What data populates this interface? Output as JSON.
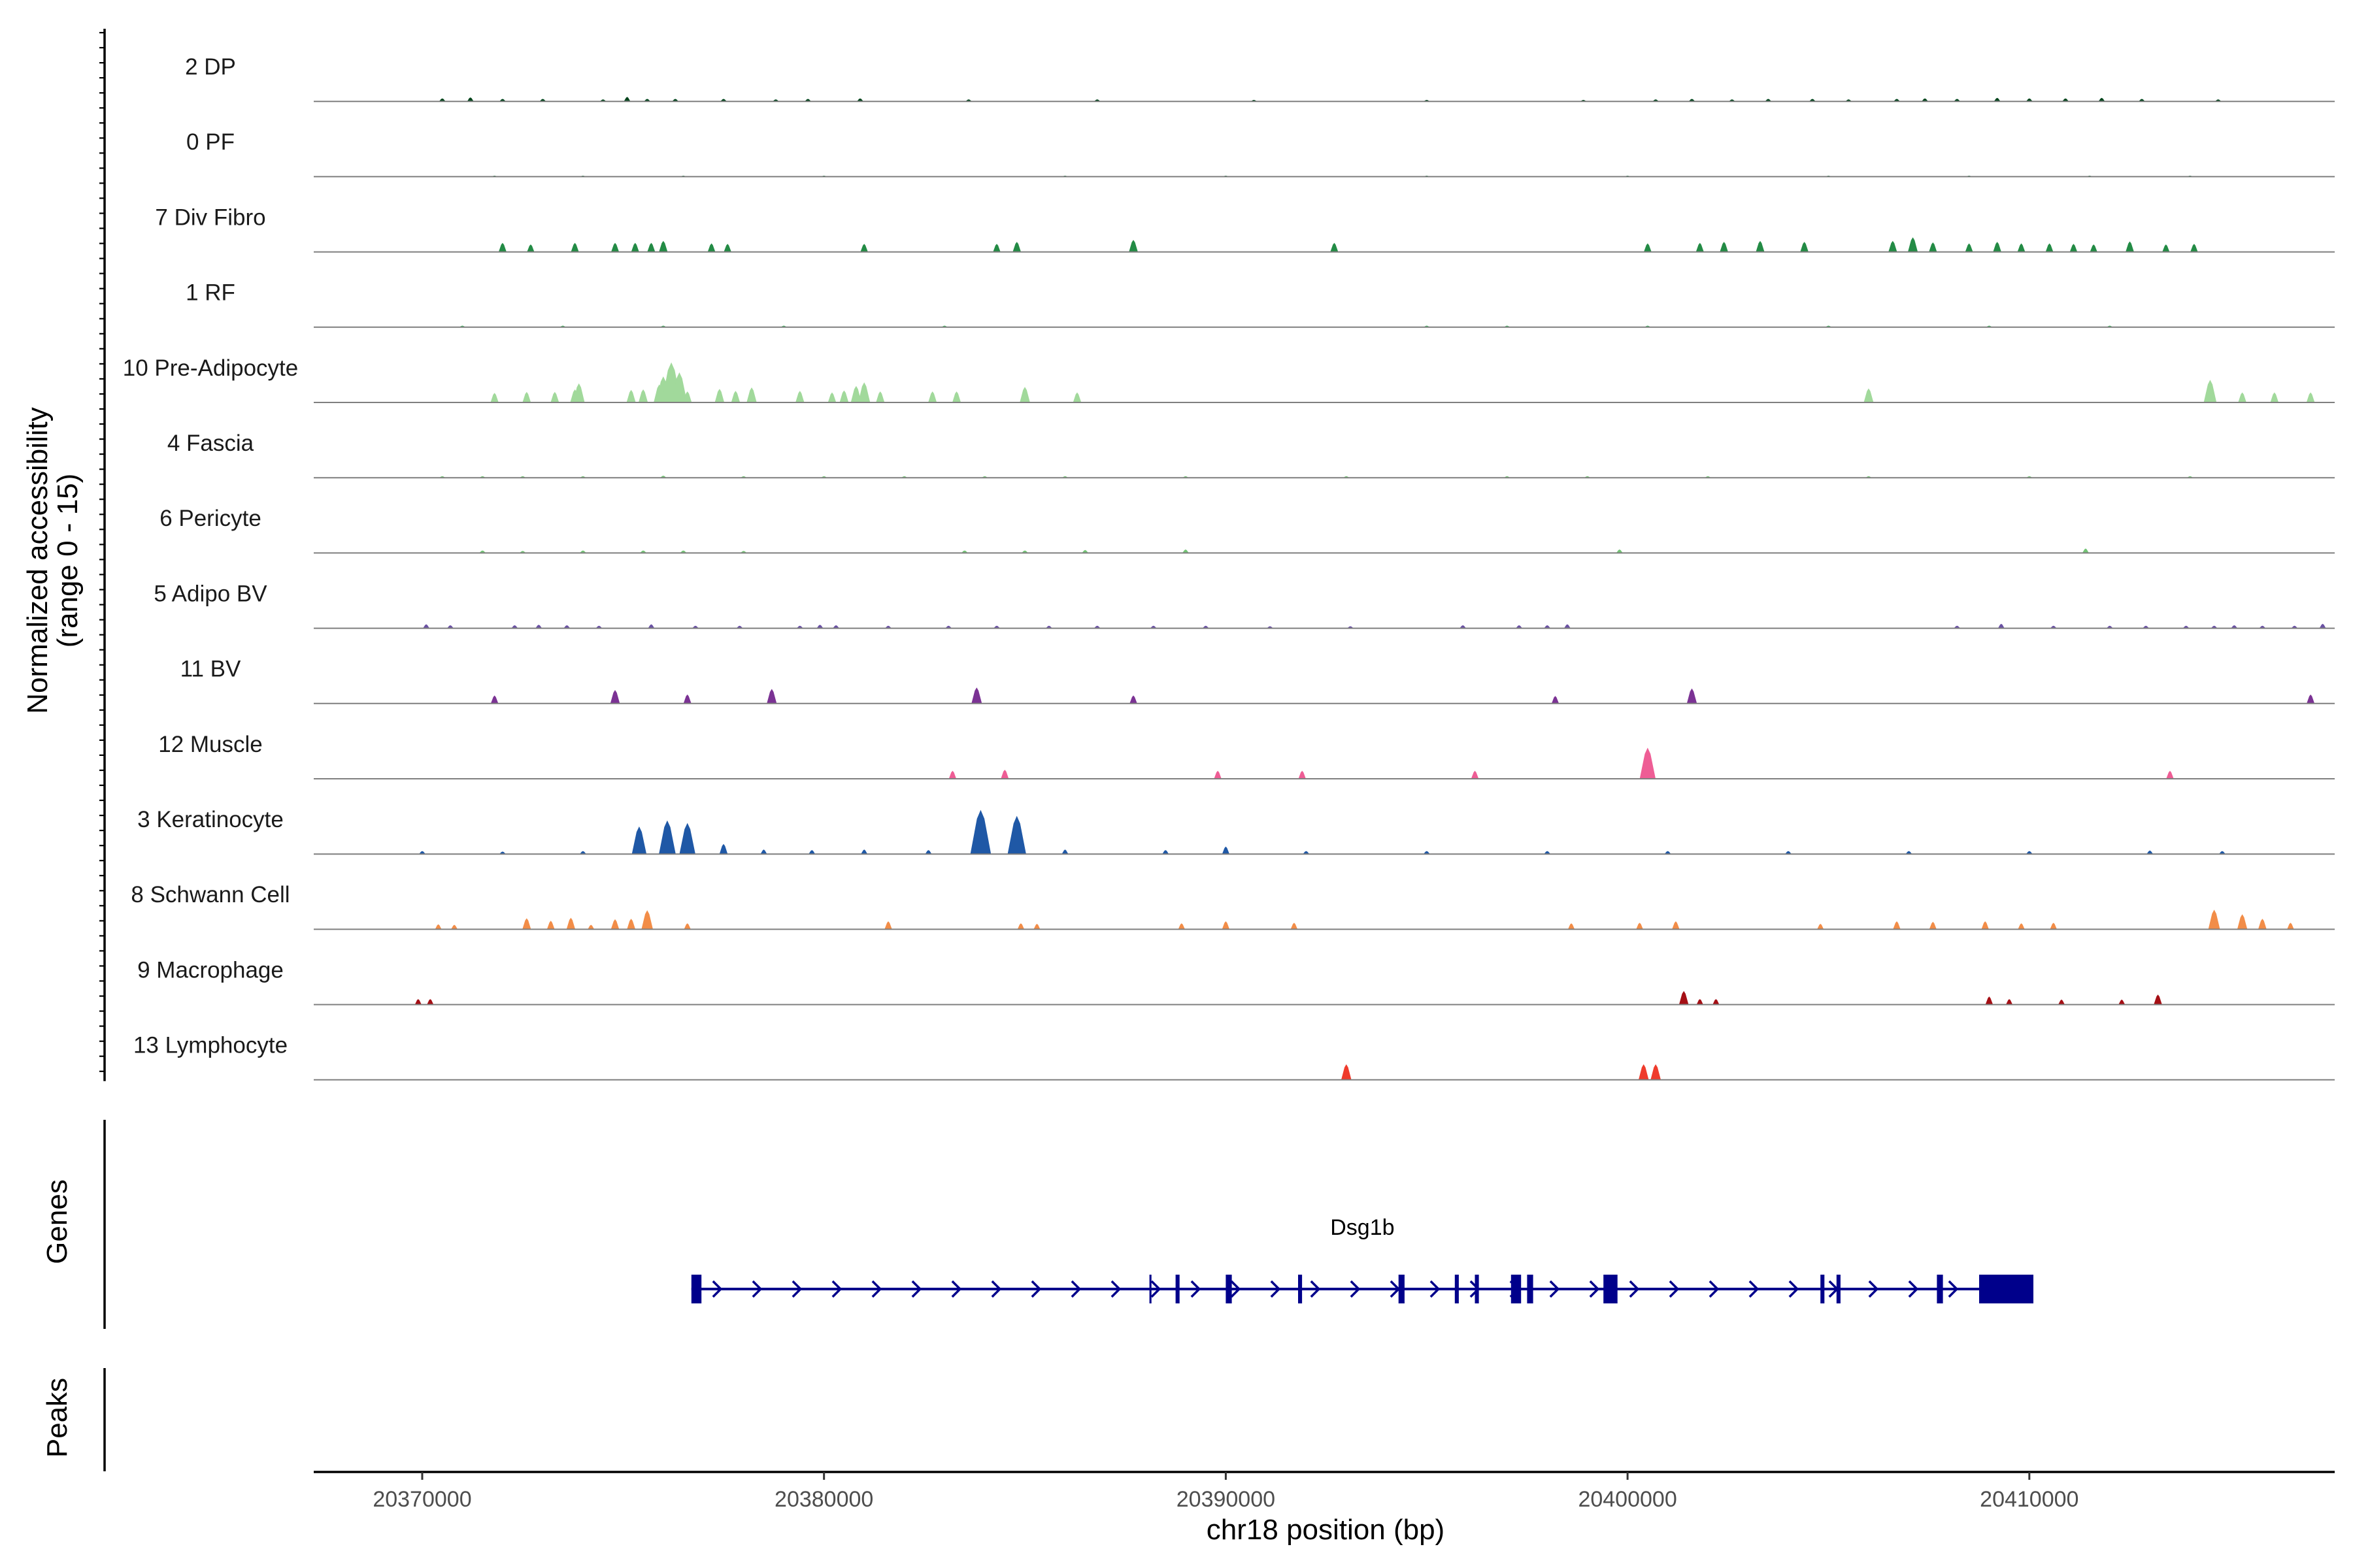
{
  "chart_data": {
    "type": "area",
    "title": "",
    "ylabel": "Normalized accessibility\n(range 0 - 15)",
    "ylabel_lines": [
      "Normalized accessibility",
      "(range 0 - 15)"
    ],
    "xlabel": "chr18 position (bp)",
    "xlim": [
      20367300,
      20417600
    ],
    "ylim": [
      0,
      15
    ],
    "x_ticks": [
      20370000,
      20380000,
      20390000,
      20400000,
      20410000
    ],
    "x_tick_labels": [
      "20370000",
      "20380000",
      "20390000",
      "20400000",
      "20410000"
    ],
    "series": [
      {
        "name": "2 DP",
        "color": "#00441b",
        "peaks": [
          [
            20370500,
            0.6
          ],
          [
            20371200,
            0.8
          ],
          [
            20372000,
            0.5
          ],
          [
            20373000,
            0.5
          ],
          [
            20374500,
            0.4
          ],
          [
            20375100,
            0.9
          ],
          [
            20375600,
            0.5
          ],
          [
            20376300,
            0.5
          ],
          [
            20377500,
            0.5
          ],
          [
            20378800,
            0.4
          ],
          [
            20379600,
            0.5
          ],
          [
            20380900,
            0.6
          ],
          [
            20383600,
            0.4
          ],
          [
            20386800,
            0.4
          ],
          [
            20390700,
            0.3
          ],
          [
            20395000,
            0.3
          ],
          [
            20398900,
            0.3
          ],
          [
            20400700,
            0.4
          ],
          [
            20401600,
            0.5
          ],
          [
            20402600,
            0.4
          ],
          [
            20403500,
            0.5
          ],
          [
            20404600,
            0.5
          ],
          [
            20405500,
            0.4
          ],
          [
            20406700,
            0.5
          ],
          [
            20407400,
            0.6
          ],
          [
            20408200,
            0.5
          ],
          [
            20409200,
            0.7
          ],
          [
            20410000,
            0.6
          ],
          [
            20410900,
            0.6
          ],
          [
            20411800,
            0.7
          ],
          [
            20412800,
            0.5
          ],
          [
            20414700,
            0.4
          ]
        ]
      },
      {
        "name": "0 PF",
        "color": "#006d2c",
        "peaks": [
          [
            20371800,
            0.2
          ],
          [
            20374000,
            0.2
          ],
          [
            20376500,
            0.2
          ],
          [
            20380000,
            0.2
          ],
          [
            20386000,
            0.2
          ],
          [
            20390000,
            0.2
          ],
          [
            20395000,
            0.2
          ],
          [
            20400000,
            0.2
          ],
          [
            20405000,
            0.2
          ],
          [
            20408500,
            0.2
          ],
          [
            20411500,
            0.2
          ],
          [
            20414000,
            0.2
          ]
        ]
      },
      {
        "name": "7 Div Fibro",
        "color": "#238b45",
        "peaks": [
          [
            20372000,
            1.8
          ],
          [
            20372700,
            1.5
          ],
          [
            20373800,
            1.8
          ],
          [
            20374800,
            1.8
          ],
          [
            20375300,
            1.8
          ],
          [
            20375700,
            1.8
          ],
          [
            20376000,
            2.2
          ],
          [
            20377200,
            1.7
          ],
          [
            20377600,
            1.6
          ],
          [
            20381000,
            1.6
          ],
          [
            20384300,
            1.6
          ],
          [
            20384800,
            2.0
          ],
          [
            20387700,
            2.4
          ],
          [
            20392700,
            1.8
          ],
          [
            20400500,
            1.7
          ],
          [
            20401800,
            1.8
          ],
          [
            20402400,
            2.0
          ],
          [
            20403300,
            2.2
          ],
          [
            20404400,
            2.0
          ],
          [
            20406600,
            2.2
          ],
          [
            20407100,
            2.9
          ],
          [
            20407600,
            1.9
          ],
          [
            20408500,
            1.7
          ],
          [
            20409200,
            2.0
          ],
          [
            20409800,
            1.7
          ],
          [
            20410500,
            1.7
          ],
          [
            20411100,
            1.6
          ],
          [
            20411600,
            1.5
          ],
          [
            20412500,
            2.1
          ],
          [
            20413400,
            1.5
          ],
          [
            20414100,
            1.6
          ]
        ]
      },
      {
        "name": "1 RF",
        "color": "#41ab5d",
        "peaks": [
          [
            20371000,
            0.3
          ],
          [
            20373500,
            0.3
          ],
          [
            20376000,
            0.3
          ],
          [
            20379000,
            0.3
          ],
          [
            20383000,
            0.3
          ],
          [
            20395000,
            0.3
          ],
          [
            20397000,
            0.3
          ],
          [
            20400500,
            0.3
          ],
          [
            20405000,
            0.3
          ],
          [
            20409000,
            0.3
          ],
          [
            20412000,
            0.3
          ]
        ]
      },
      {
        "name": "10 Pre-Adipocyte",
        "color": "#a1d99b",
        "peaks": [
          [
            20371800,
            1.9
          ],
          [
            20372600,
            2.1
          ],
          [
            20373300,
            2.1
          ],
          [
            20373800,
            2.6
          ],
          [
            20373900,
            3.8
          ],
          [
            20375200,
            2.5
          ],
          [
            20375500,
            2.6
          ],
          [
            20375900,
            3.6
          ],
          [
            20376000,
            5.2
          ],
          [
            20376200,
            8.0
          ],
          [
            20376400,
            6.0
          ],
          [
            20376600,
            2.2
          ],
          [
            20377400,
            2.7
          ],
          [
            20377800,
            2.3
          ],
          [
            20378200,
            3.0
          ],
          [
            20379400,
            2.3
          ],
          [
            20380200,
            2.0
          ],
          [
            20380500,
            2.4
          ],
          [
            20380800,
            3.3
          ],
          [
            20381000,
            4.0
          ],
          [
            20381400,
            2.2
          ],
          [
            20382700,
            2.2
          ],
          [
            20383300,
            2.2
          ],
          [
            20385000,
            3.1
          ],
          [
            20386300,
            2.0
          ],
          [
            20406000,
            2.8
          ],
          [
            20414500,
            4.5
          ],
          [
            20415300,
            2.0
          ],
          [
            20416100,
            2.0
          ],
          [
            20417000,
            2.0
          ]
        ]
      },
      {
        "name": "4 Fascia",
        "color": "#74c476",
        "peaks": [
          [
            20370500,
            0.3
          ],
          [
            20371500,
            0.3
          ],
          [
            20372500,
            0.3
          ],
          [
            20374000,
            0.3
          ],
          [
            20376000,
            0.4
          ],
          [
            20378000,
            0.3
          ],
          [
            20380000,
            0.3
          ],
          [
            20382000,
            0.3
          ],
          [
            20384000,
            0.3
          ],
          [
            20386000,
            0.3
          ],
          [
            20389000,
            0.3
          ],
          [
            20393000,
            0.3
          ],
          [
            20397000,
            0.3
          ],
          [
            20399000,
            0.3
          ],
          [
            20402000,
            0.3
          ],
          [
            20406000,
            0.3
          ],
          [
            20410000,
            0.3
          ],
          [
            20414000,
            0.3
          ]
        ]
      },
      {
        "name": "6 Pericyte",
        "color": "#74c476",
        "peaks": [
          [
            20371500,
            0.5
          ],
          [
            20372500,
            0.4
          ],
          [
            20374000,
            0.5
          ],
          [
            20375500,
            0.5
          ],
          [
            20376500,
            0.5
          ],
          [
            20378000,
            0.4
          ],
          [
            20383500,
            0.5
          ],
          [
            20385000,
            0.5
          ],
          [
            20386500,
            0.6
          ],
          [
            20389000,
            0.7
          ],
          [
            20399800,
            0.7
          ],
          [
            20411400,
            0.9
          ]
        ]
      },
      {
        "name": "5 Adipo BV",
        "color": "#6a51a3",
        "peaks": [
          [
            20370100,
            0.8
          ],
          [
            20370700,
            0.6
          ],
          [
            20372300,
            0.6
          ],
          [
            20372900,
            0.7
          ],
          [
            20373600,
            0.6
          ],
          [
            20374400,
            0.5
          ],
          [
            20375700,
            0.8
          ],
          [
            20376800,
            0.5
          ],
          [
            20377900,
            0.5
          ],
          [
            20379400,
            0.5
          ],
          [
            20379900,
            0.7
          ],
          [
            20380300,
            0.6
          ],
          [
            20381600,
            0.5
          ],
          [
            20383100,
            0.5
          ],
          [
            20384300,
            0.5
          ],
          [
            20385600,
            0.5
          ],
          [
            20386800,
            0.5
          ],
          [
            20388200,
            0.5
          ],
          [
            20389500,
            0.5
          ],
          [
            20391100,
            0.4
          ],
          [
            20393100,
            0.4
          ],
          [
            20395900,
            0.6
          ],
          [
            20397300,
            0.6
          ],
          [
            20398000,
            0.6
          ],
          [
            20398500,
            0.8
          ],
          [
            20408200,
            0.5
          ],
          [
            20409300,
            0.9
          ],
          [
            20410600,
            0.5
          ],
          [
            20412000,
            0.5
          ],
          [
            20412900,
            0.5
          ],
          [
            20413900,
            0.5
          ],
          [
            20414600,
            0.5
          ],
          [
            20415100,
            0.6
          ],
          [
            20415800,
            0.5
          ],
          [
            20416600,
            0.5
          ],
          [
            20417300,
            0.9
          ]
        ]
      },
      {
        "name": "11 BV",
        "color": "#7b3294",
        "peaks": [
          [
            20371800,
            1.6
          ],
          [
            20374800,
            2.7
          ],
          [
            20376600,
            1.8
          ],
          [
            20378700,
            2.9
          ],
          [
            20383800,
            3.2
          ],
          [
            20387700,
            1.6
          ],
          [
            20398200,
            1.5
          ],
          [
            20401600,
            3.0
          ],
          [
            20417000,
            1.8
          ]
        ]
      },
      {
        "name": "12 Muscle",
        "color": "#ee5d95",
        "peaks": [
          [
            20383200,
            1.6
          ],
          [
            20384500,
            1.8
          ],
          [
            20389800,
            1.6
          ],
          [
            20391900,
            1.6
          ],
          [
            20396200,
            1.6
          ],
          [
            20400500,
            6.2
          ],
          [
            20413500,
            1.6
          ]
        ]
      },
      {
        "name": "3 Keratinocyte",
        "color": "#1f58a6",
        "peaks": [
          [
            20370000,
            0.6
          ],
          [
            20372000,
            0.5
          ],
          [
            20374000,
            0.6
          ],
          [
            20375400,
            5.5
          ],
          [
            20376100,
            6.7
          ],
          [
            20376600,
            6.2
          ],
          [
            20377500,
            2.0
          ],
          [
            20378500,
            0.9
          ],
          [
            20379700,
            0.8
          ],
          [
            20381000,
            0.9
          ],
          [
            20382600,
            0.8
          ],
          [
            20383900,
            8.8
          ],
          [
            20384800,
            7.6
          ],
          [
            20386000,
            0.9
          ],
          [
            20388500,
            0.8
          ],
          [
            20390000,
            1.5
          ],
          [
            20392000,
            0.6
          ],
          [
            20395000,
            0.6
          ],
          [
            20398000,
            0.6
          ],
          [
            20401000,
            0.6
          ],
          [
            20404000,
            0.6
          ],
          [
            20407000,
            0.6
          ],
          [
            20410000,
            0.6
          ],
          [
            20413000,
            0.7
          ],
          [
            20414800,
            0.6
          ]
        ]
      },
      {
        "name": "8 Schwann Cell",
        "color": "#f28d48",
        "peaks": [
          [
            20370400,
            1.0
          ],
          [
            20370800,
            0.9
          ],
          [
            20372600,
            2.2
          ],
          [
            20373200,
            1.7
          ],
          [
            20373700,
            2.3
          ],
          [
            20374200,
            0.9
          ],
          [
            20374800,
            2.0
          ],
          [
            20375200,
            2.1
          ],
          [
            20375600,
            3.8
          ],
          [
            20376600,
            1.2
          ],
          [
            20381600,
            1.6
          ],
          [
            20384900,
            1.2
          ],
          [
            20385300,
            1.1
          ],
          [
            20388900,
            1.2
          ],
          [
            20390000,
            1.6
          ],
          [
            20391700,
            1.3
          ],
          [
            20398600,
            1.2
          ],
          [
            20400300,
            1.3
          ],
          [
            20401200,
            1.6
          ],
          [
            20404800,
            1.1
          ],
          [
            20406700,
            1.6
          ],
          [
            20407600,
            1.5
          ],
          [
            20408900,
            1.6
          ],
          [
            20409800,
            1.2
          ],
          [
            20410600,
            1.3
          ],
          [
            20414600,
            3.9
          ],
          [
            20415300,
            3.0
          ],
          [
            20415800,
            2.1
          ],
          [
            20416500,
            1.3
          ]
        ]
      },
      {
        "name": "9 Macrophage",
        "color": "#a50f15",
        "peaks": [
          [
            20369900,
            1.1
          ],
          [
            20370200,
            1.1
          ],
          [
            20401400,
            2.7
          ],
          [
            20401800,
            1.1
          ],
          [
            20402200,
            1.1
          ],
          [
            20409000,
            1.6
          ],
          [
            20409500,
            1.1
          ],
          [
            20410800,
            1.0
          ],
          [
            20412300,
            1.0
          ],
          [
            20413200,
            2.0
          ]
        ]
      },
      {
        "name": "13 Lymphocyte",
        "color": "#ef3b2c",
        "peaks": [
          [
            20393000,
            3.1
          ],
          [
            20400400,
            3.1
          ],
          [
            20400700,
            3.1
          ]
        ]
      }
    ],
    "genes": [
      {
        "name": "Dsg1b",
        "strand": "+",
        "start": 20376700,
        "end": 20410100,
        "color": "#00008b",
        "exons": [
          [
            20376700,
            20376950
          ],
          [
            20388100,
            20388150
          ],
          [
            20388750,
            20388850
          ],
          [
            20390000,
            20390150
          ],
          [
            20391800,
            20391900
          ],
          [
            20394300,
            20394450
          ],
          [
            20395700,
            20395800
          ],
          [
            20396200,
            20396300
          ],
          [
            20397100,
            20397350
          ],
          [
            20397500,
            20397650
          ],
          [
            20399400,
            20399750
          ],
          [
            20404800,
            20404900
          ],
          [
            20405200,
            20405300
          ],
          [
            20407700,
            20407850
          ],
          [
            20408750,
            20410100
          ]
        ]
      }
    ],
    "panels": {
      "genes": "Genes",
      "peaks": "Peaks"
    }
  }
}
